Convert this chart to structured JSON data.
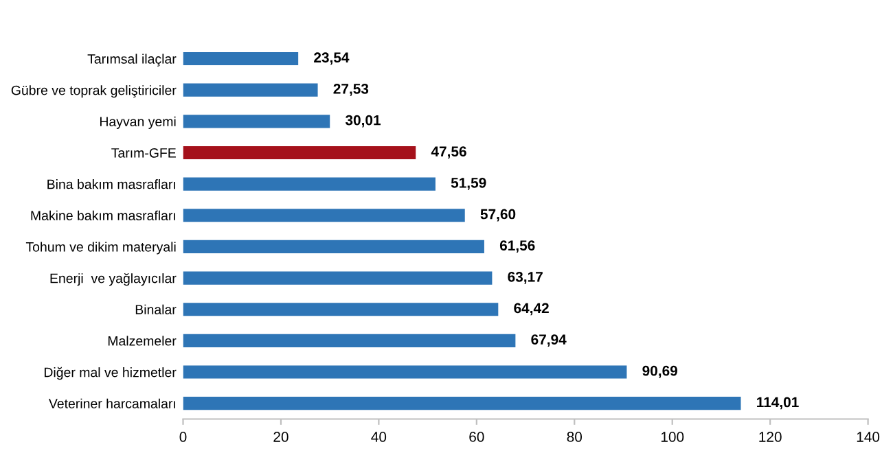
{
  "chart_data": {
    "type": "bar",
    "orientation": "horizontal",
    "categories": [
      "Tarımsal ilaçlar",
      "Gübre ve toprak geliştiriciler",
      "Hayvan yemi",
      "Tarım-GFE",
      "Bina bakım masrafları",
      "Makine bakım masrafları",
      "Tohum ve dikim materyali",
      "Enerji  ve yağlayıcılar",
      "Binalar",
      "Malzemeler",
      "Diğer mal ve hizmetler",
      "Veteriner harcamaları"
    ],
    "values": [
      23.54,
      27.53,
      30.01,
      47.56,
      51.59,
      57.6,
      61.56,
      63.17,
      64.42,
      67.94,
      90.69,
      114.01
    ],
    "value_labels": [
      "23,54",
      "27,53",
      "30,01",
      "47,56",
      "51,59",
      "57,60",
      "61,56",
      "63,17",
      "64,42",
      "67,94",
      "90,69",
      "114,01"
    ],
    "colors": [
      "#2e75b6",
      "#2e75b6",
      "#2e75b6",
      "#a5111b",
      "#2e75b6",
      "#2e75b6",
      "#2e75b6",
      "#2e75b6",
      "#2e75b6",
      "#2e75b6",
      "#2e75b6",
      "#2e75b6"
    ],
    "xlim": [
      0,
      140
    ],
    "xticks": [
      0,
      20,
      40,
      60,
      80,
      100,
      120,
      140
    ],
    "grid": false,
    "legend": false
  }
}
